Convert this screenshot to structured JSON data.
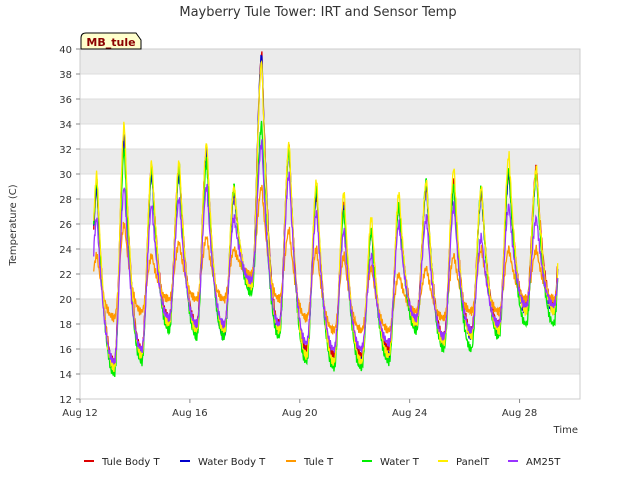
{
  "chart_data": {
    "type": "line",
    "title": "Mayberry Tule Tower: IRT and Sensor Temp",
    "station_label": "MB_tule",
    "xlabel": "Time",
    "ylabel": "Temperature (C)",
    "xlim": [
      12.0,
      30.2
    ],
    "ylim": [
      12,
      40
    ],
    "y_ticks": [
      12,
      14,
      16,
      18,
      20,
      22,
      24,
      26,
      28,
      30,
      32,
      34,
      36,
      38,
      40
    ],
    "x_ticks": [
      {
        "value": 12,
        "label": "Aug 12"
      },
      {
        "value": 16,
        "label": "Aug 16"
      },
      {
        "value": 20,
        "label": "Aug 20"
      },
      {
        "value": 24,
        "label": "Aug 24"
      },
      {
        "value": 28,
        "label": "Aug 28"
      }
    ],
    "grid": true,
    "legend_position": "bottom",
    "series": [
      {
        "name": "Tule Body T",
        "color": "#dd0000",
        "peaks": [
          29.0,
          33.0,
          30.5,
          30.5,
          32.0,
          28.5,
          39.5,
          32.0,
          28.5,
          27.5,
          25.5,
          27.5,
          29.0,
          29.5,
          28.5,
          30.0,
          30.5
        ],
        "mins": [
          14.5,
          15.0,
          16.0,
          18.5,
          18.0,
          17.5,
          21.0,
          18.0,
          16.0,
          15.5,
          15.5,
          16.0,
          18.5,
          17.0,
          17.5,
          18.0,
          19.5
        ]
      },
      {
        "name": "Water Body T",
        "color": "#0000cc",
        "peaks": [
          29.0,
          33.0,
          30.0,
          30.0,
          32.0,
          28.5,
          39.5,
          32.0,
          28.5,
          27.5,
          25.5,
          27.5,
          29.0,
          29.0,
          28.5,
          30.0,
          30.0
        ],
        "mins": [
          14.5,
          14.5,
          15.5,
          18.0,
          17.5,
          17.0,
          21.0,
          17.5,
          15.5,
          15.0,
          15.0,
          15.5,
          18.0,
          16.5,
          17.0,
          17.5,
          19.0
        ]
      },
      {
        "name": "Tule T",
        "color": "#ff9900",
        "peaks": [
          23.5,
          26.0,
          23.5,
          24.5,
          25.0,
          24.0,
          29.0,
          25.5,
          24.0,
          23.5,
          22.5,
          22.0,
          22.5,
          23.5,
          24.0,
          24.0,
          24.0
        ],
        "mins": [
          18.5,
          18.5,
          19.0,
          20.0,
          20.0,
          20.0,
          22.0,
          20.0,
          18.5,
          17.5,
          17.5,
          17.5,
          19.0,
          18.5,
          19.0,
          19.0,
          20.0
        ]
      },
      {
        "name": "Water T",
        "color": "#00ee00",
        "peaks": [
          29.5,
          32.0,
          30.5,
          30.5,
          31.0,
          29.0,
          34.0,
          32.0,
          29.0,
          27.0,
          25.5,
          27.5,
          29.5,
          29.0,
          29.0,
          30.5,
          30.0
        ],
        "mins": [
          14.0,
          14.0,
          15.0,
          17.5,
          17.0,
          17.0,
          20.5,
          17.0,
          15.0,
          14.5,
          14.5,
          15.0,
          17.5,
          16.0,
          16.0,
          17.0,
          18.0
        ]
      },
      {
        "name": "PanelT",
        "color": "#ffee00",
        "peaks": [
          30.0,
          34.0,
          31.0,
          31.0,
          32.5,
          29.0,
          39.0,
          32.5,
          29.5,
          28.5,
          26.5,
          28.5,
          29.5,
          30.5,
          29.0,
          31.5,
          30.5
        ],
        "mins": [
          14.5,
          14.5,
          15.5,
          18.0,
          17.5,
          17.5,
          21.0,
          17.5,
          15.5,
          15.0,
          15.0,
          15.5,
          18.0,
          16.5,
          17.0,
          17.5,
          19.0
        ]
      },
      {
        "name": "AM25T",
        "color": "#9933ff",
        "peaks": [
          26.5,
          29.0,
          27.5,
          28.0,
          29.0,
          26.5,
          32.5,
          30.0,
          27.0,
          25.5,
          23.5,
          26.0,
          26.5,
          27.5,
          25.0,
          27.5,
          26.5
        ],
        "mins": [
          15.0,
          15.0,
          16.0,
          18.5,
          18.0,
          18.0,
          21.5,
          18.0,
          16.5,
          16.0,
          16.0,
          16.5,
          18.5,
          17.0,
          17.5,
          18.0,
          19.5
        ]
      }
    ]
  }
}
